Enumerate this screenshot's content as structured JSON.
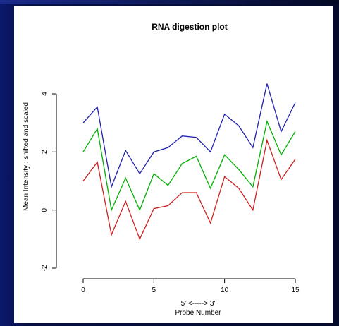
{
  "chart_data": {
    "type": "line",
    "title": "RNA digestion plot",
    "xlabel_line1": "5' <-----> 3'",
    "xlabel_line2": "Probe Number",
    "ylabel": "Mean Intensity : shifted and scaled",
    "xlim": [
      0,
      15
    ],
    "ylim": [
      -2,
      4
    ],
    "x_ticks": [
      "0",
      "5",
      "10",
      "15"
    ],
    "y_ticks": [
      "-2",
      "0",
      "2",
      "4"
    ],
    "x_tick_values": [
      0,
      5,
      10,
      15
    ],
    "y_tick_values": [
      -2,
      0,
      2,
      4
    ],
    "grid": false,
    "x": [
      0,
      1,
      2,
      3,
      4,
      5,
      6,
      7,
      8,
      9,
      10,
      11,
      12,
      13,
      14,
      15
    ],
    "series": [
      {
        "color": "#2020b0",
        "values": [
          3.0,
          3.55,
          0.8,
          2.05,
          1.25,
          2.0,
          2.15,
          2.55,
          2.5,
          2.0,
          3.3,
          2.9,
          2.15,
          4.35,
          2.7,
          3.7
        ]
      },
      {
        "color": "#00b000",
        "values": [
          2.0,
          2.8,
          0.0,
          1.1,
          0.0,
          1.25,
          0.85,
          1.6,
          1.85,
          0.75,
          1.9,
          1.4,
          0.8,
          3.05,
          1.9,
          2.7
        ]
      },
      {
        "color": "#d02020",
        "values": [
          1.0,
          1.65,
          -0.85,
          0.3,
          -1.0,
          0.05,
          0.15,
          0.6,
          0.6,
          -0.45,
          1.15,
          0.75,
          0.0,
          2.4,
          1.05,
          1.75
        ]
      }
    ]
  }
}
